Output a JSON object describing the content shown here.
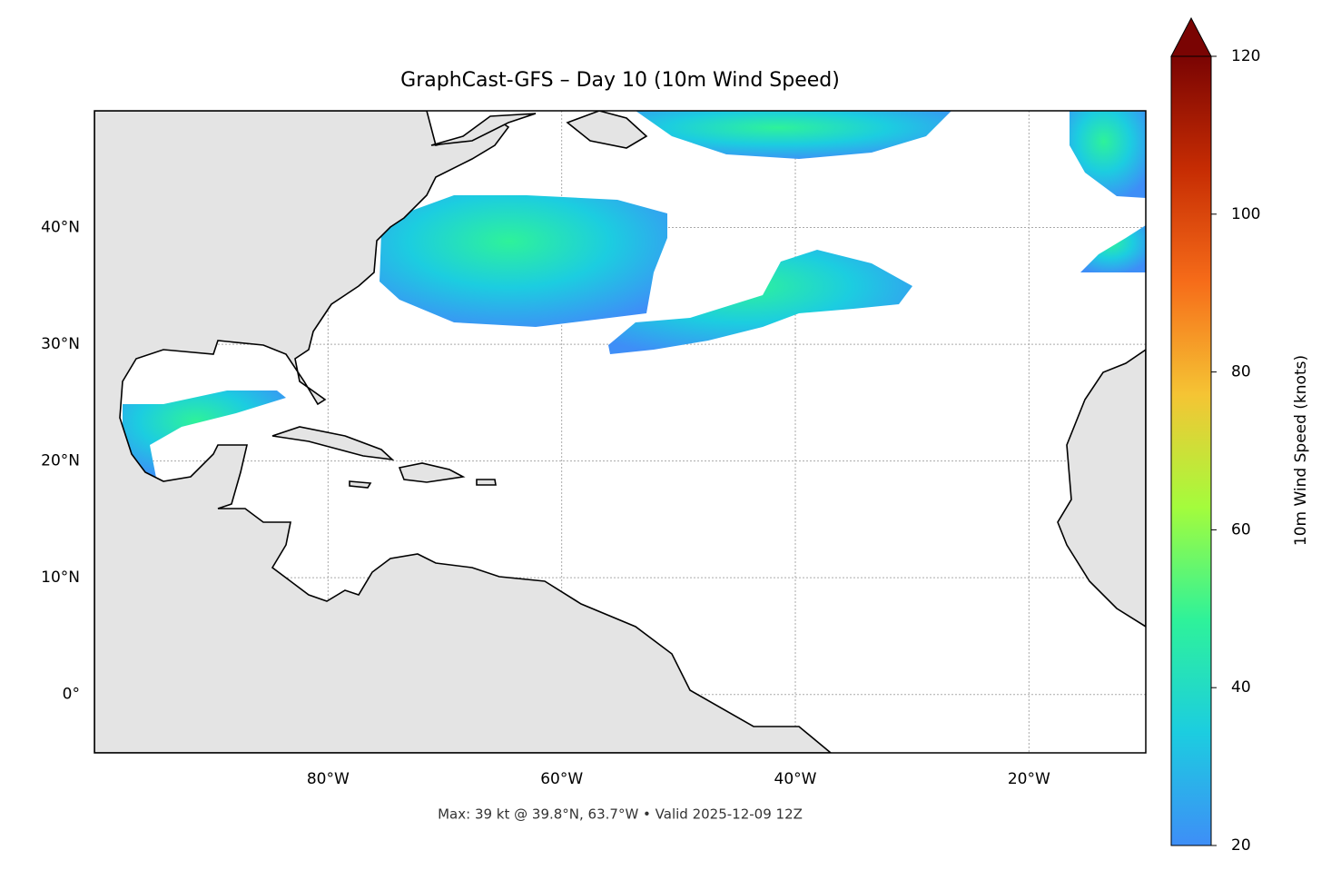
{
  "map": {
    "title": "GraphCast-GFS – Day 10 (10m Wind Speed)",
    "xlim": [
      -100,
      -10
    ],
    "ylim": [
      -5,
      50
    ],
    "xticks": [
      {
        "value": -80,
        "label": "80°W"
      },
      {
        "value": -60,
        "label": "60°W"
      },
      {
        "value": -40,
        "label": "40°W"
      },
      {
        "value": -20,
        "label": "20°W"
      }
    ],
    "yticks": [
      {
        "value": 40,
        "label": "40°N"
      },
      {
        "value": 30,
        "label": "30°N"
      },
      {
        "value": 20,
        "label": "20°N"
      },
      {
        "value": 10,
        "label": "10°N"
      },
      {
        "value": 0,
        "label": "0°"
      }
    ],
    "grid": true,
    "colorbar": {
      "label": "10m Wind Speed (knots)",
      "lim": [
        20,
        120
      ],
      "ticks": [
        20,
        40,
        60,
        80,
        100,
        120
      ],
      "colors": [
        "#3e8ef7",
        "#1ccde0",
        "#2ef29a",
        "#a4fc3c",
        "#f5c434",
        "#f66c19",
        "#c62c03",
        "#7a0403"
      ]
    },
    "footer": "Max: 39 kt @ 39.8°N, 63.7°W • Valid 2025-12-09 12Z"
  }
}
